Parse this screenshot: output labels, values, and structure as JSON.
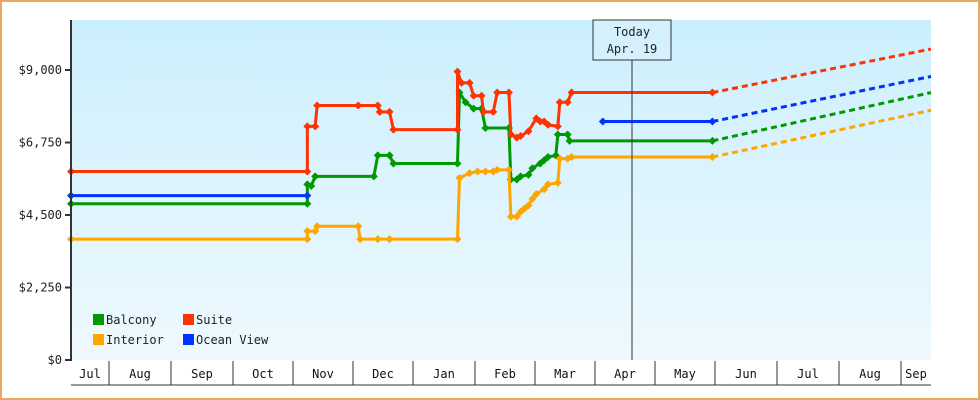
{
  "chart_data": {
    "type": "line",
    "title": "",
    "xlabel": "",
    "ylabel": "",
    "ylim": [
      0,
      10125
    ],
    "y_ticks": [
      {
        "value": 0,
        "label": "$0"
      },
      {
        "value": 2250,
        "label": "$2,250"
      },
      {
        "value": 4500,
        "label": "$4,500"
      },
      {
        "value": 6750,
        "label": "$6,750"
      },
      {
        "value": 9000,
        "label": "$9,000"
      }
    ],
    "x_months": [
      "Jul",
      "Aug",
      "Sep",
      "Oct",
      "Nov",
      "Dec",
      "Jan",
      "Feb",
      "Mar",
      "Apr",
      "May",
      "Jun",
      "Jul",
      "Aug",
      "Sep"
    ],
    "grid": false,
    "legend_position": "bottom-left inside plot",
    "today_marker": {
      "line1": "Today",
      "line2": "Apr. 19"
    },
    "series": [
      {
        "name": "Balcony",
        "color": "#009900",
        "points": [
          [
            0,
            4850
          ],
          [
            6.5,
            4850
          ],
          [
            6.5,
            5450
          ],
          [
            6.6,
            5400
          ],
          [
            6.7,
            5700
          ],
          [
            8.2,
            5700
          ],
          [
            8.3,
            6350
          ],
          [
            8.6,
            6350
          ],
          [
            8.7,
            6100
          ],
          [
            10.3,
            6100
          ],
          [
            10.35,
            8300
          ],
          [
            10.5,
            8000
          ],
          [
            10.7,
            7800
          ],
          [
            10.9,
            7800
          ],
          [
            11.0,
            7200
          ],
          [
            11.6,
            7200
          ],
          [
            11.65,
            5600
          ],
          [
            11.8,
            5600
          ],
          [
            11.9,
            5700
          ],
          [
            12.1,
            5750
          ],
          [
            12.2,
            5950
          ],
          [
            12.4,
            6100
          ],
          [
            12.5,
            6200
          ],
          [
            12.6,
            6300
          ],
          [
            12.8,
            6350
          ],
          [
            12.85,
            7000
          ],
          [
            13.1,
            7000
          ],
          [
            13.15,
            6800
          ],
          [
            16.8,
            6800
          ]
        ],
        "forecast": [
          [
            16.8,
            6800
          ],
          [
            23.0,
            8300
          ]
        ]
      },
      {
        "name": "Suite",
        "color": "#ff3300",
        "points": [
          [
            0,
            5850
          ],
          [
            6.5,
            5850
          ],
          [
            6.5,
            7250
          ],
          [
            6.7,
            7250
          ],
          [
            6.75,
            7900
          ],
          [
            7.8,
            7900
          ],
          [
            8.3,
            7900
          ],
          [
            8.35,
            7700
          ],
          [
            8.6,
            7700
          ],
          [
            8.7,
            7150
          ],
          [
            10.3,
            7150
          ],
          [
            10.3,
            8950
          ],
          [
            10.4,
            8600
          ],
          [
            10.6,
            8600
          ],
          [
            10.7,
            8200
          ],
          [
            10.9,
            8200
          ],
          [
            10.95,
            7700
          ],
          [
            11.2,
            7700
          ],
          [
            11.3,
            8300
          ],
          [
            11.6,
            8300
          ],
          [
            11.65,
            7000
          ],
          [
            11.8,
            6900
          ],
          [
            11.9,
            6950
          ],
          [
            12.1,
            7100
          ],
          [
            12.3,
            7500
          ],
          [
            12.4,
            7400
          ],
          [
            12.5,
            7400
          ],
          [
            12.6,
            7300
          ],
          [
            12.85,
            7250
          ],
          [
            12.9,
            8000
          ],
          [
            13.1,
            8000
          ],
          [
            13.2,
            8300
          ],
          [
            16.8,
            8300
          ]
        ],
        "forecast": [
          [
            16.8,
            8300
          ],
          [
            23.0,
            9650
          ]
        ]
      },
      {
        "name": "Interior",
        "color": "#ffa500",
        "points": [
          [
            0,
            3750
          ],
          [
            6.5,
            3750
          ],
          [
            6.5,
            4000
          ],
          [
            6.7,
            4000
          ],
          [
            6.75,
            4150
          ],
          [
            7.8,
            4150
          ],
          [
            7.85,
            3750
          ],
          [
            8.3,
            3750
          ],
          [
            8.6,
            3750
          ],
          [
            10.3,
            3750
          ],
          [
            10.35,
            5650
          ],
          [
            10.6,
            5800
          ],
          [
            10.8,
            5850
          ],
          [
            11.0,
            5850
          ],
          [
            11.2,
            5850
          ],
          [
            11.3,
            5900
          ],
          [
            11.6,
            5900
          ],
          [
            11.65,
            4450
          ],
          [
            11.8,
            4450
          ],
          [
            11.9,
            4600
          ],
          [
            12.0,
            4700
          ],
          [
            12.1,
            4800
          ],
          [
            12.2,
            5000
          ],
          [
            12.3,
            5150
          ],
          [
            12.5,
            5300
          ],
          [
            12.6,
            5450
          ],
          [
            12.85,
            5500
          ],
          [
            12.9,
            6250
          ],
          [
            13.1,
            6250
          ],
          [
            13.2,
            6300
          ],
          [
            16.8,
            6300
          ]
        ],
        "forecast": [
          [
            16.8,
            6300
          ],
          [
            23.0,
            7750
          ]
        ]
      },
      {
        "name": "Ocean View",
        "color": "#0033ff",
        "points": [
          [
            0,
            5100
          ],
          [
            6.5,
            5100
          ],
          [
            null,
            null
          ],
          [
            14.0,
            7400
          ],
          [
            16.8,
            7400
          ]
        ],
        "forecast": [
          [
            16.8,
            7400
          ],
          [
            23.0,
            8800
          ]
        ]
      }
    ]
  },
  "legend": [
    {
      "label": "Balcony",
      "color": "#009900"
    },
    {
      "label": "Suite",
      "color": "#ff3300"
    },
    {
      "label": "Interior",
      "color": "#ffa500"
    },
    {
      "label": "Ocean View",
      "color": "#0033ff"
    }
  ]
}
